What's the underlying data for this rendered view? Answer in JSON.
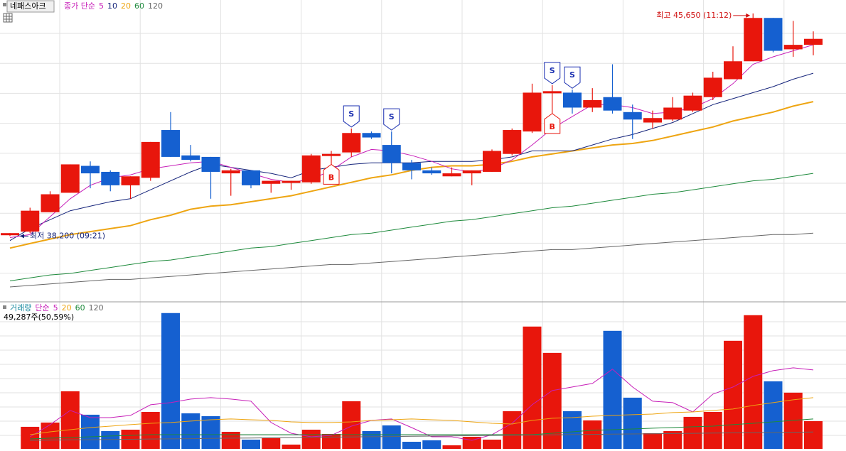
{
  "chart_data": {
    "type": "candlestick",
    "title": "네패스아크",
    "ma_label": "종가 단순",
    "up_color": "#e8160c",
    "down_color": "#1560d0",
    "ylim": [
      36000,
      46100
    ],
    "open": [
      38250,
      38350,
      39000,
      39650,
      40550,
      40350,
      39900,
      40150,
      41750,
      40900,
      40850,
      40300,
      40400,
      39950,
      40000,
      40000,
      40900,
      41000,
      41650,
      41250,
      40650,
      40400,
      40200,
      40300,
      40350,
      40950,
      41700,
      43000,
      43000,
      42500,
      42850,
      42350,
      42000,
      42100,
      42400,
      42850,
      43450,
      44050,
      45500,
      44450,
      44600
    ],
    "high": [
      38300,
      39150,
      39700,
      40600,
      40700,
      40400,
      40200,
      41350,
      42350,
      41250,
      40850,
      40450,
      40400,
      40050,
      40050,
      40950,
      41050,
      41800,
      41700,
      41700,
      40750,
      40500,
      40500,
      40400,
      41100,
      41800,
      43300,
      43250,
      43100,
      43150,
      43950,
      42600,
      42400,
      42850,
      43000,
      43700,
      44550,
      45650,
      45500,
      45400,
      45050
    ],
    "low": [
      38200,
      38300,
      39000,
      39650,
      39800,
      39700,
      39450,
      40050,
      40850,
      40700,
      39450,
      39550,
      39800,
      39650,
      39750,
      39950,
      40600,
      40850,
      41450,
      40300,
      40100,
      40250,
      40200,
      39900,
      40350,
      40900,
      41650,
      42300,
      42300,
      42350,
      42300,
      41450,
      41800,
      42050,
      42350,
      42750,
      43450,
      44050,
      44350,
      44200,
      44250
    ],
    "close": [
      38300,
      39050,
      39600,
      40600,
      40300,
      39900,
      40200,
      41350,
      40850,
      40750,
      40350,
      40400,
      39900,
      40050,
      40050,
      40900,
      40950,
      41650,
      41500,
      40650,
      40400,
      40300,
      40300,
      40400,
      41050,
      41750,
      43000,
      43050,
      42500,
      42750,
      42400,
      42100,
      42150,
      42500,
      42900,
      43500,
      44050,
      45500,
      44400,
      44600,
      44800
    ],
    "ma": [
      {
        "name": "5",
        "color": "#c71fb8",
        "values": [
          38150,
          38250,
          38850,
          39450,
          39900,
          40150,
          40250,
          40450,
          40550,
          40650,
          40700,
          40500,
          40300,
          40100,
          40000,
          40100,
          40400,
          40850,
          41100,
          41050,
          40900,
          40700,
          40450,
          40350,
          40450,
          40750,
          41250,
          41800,
          42200,
          42600,
          42600,
          42500,
          42300,
          42350,
          42500,
          42800,
          43300,
          43950,
          44200,
          44400,
          44600
        ]
      },
      {
        "name": "10",
        "color": "#14237a",
        "values": [
          38050,
          38450,
          38750,
          39050,
          39200,
          39350,
          39450,
          39750,
          40050,
          40350,
          40600,
          40500,
          40400,
          40300,
          40150,
          40400,
          40500,
          40600,
          40650,
          40650,
          40650,
          40700,
          40700,
          40700,
          40750,
          40850,
          41050,
          41050,
          41050,
          41250,
          41450,
          41600,
          41800,
          42000,
          42300,
          42600,
          42800,
          43000,
          43200,
          43450,
          43650
        ]
      },
      {
        "name": "20",
        "color": "#eea512",
        "values": [
          37800,
          37950,
          38100,
          38250,
          38350,
          38450,
          38550,
          38750,
          38900,
          39100,
          39200,
          39250,
          39350,
          39450,
          39550,
          39700,
          39850,
          40000,
          40150,
          40250,
          40400,
          40500,
          40550,
          40550,
          40600,
          40700,
          40850,
          40950,
          41050,
          41150,
          41250,
          41300,
          41400,
          41550,
          41700,
          41850,
          42050,
          42200,
          42350,
          42550,
          42700
        ]
      },
      {
        "name": "60",
        "color": "#1e8a3c",
        "values": [
          36700,
          36800,
          36900,
          36950,
          37050,
          37150,
          37250,
          37350,
          37400,
          37500,
          37600,
          37700,
          37800,
          37850,
          37950,
          38050,
          38150,
          38250,
          38300,
          38400,
          38500,
          38600,
          38700,
          38750,
          38850,
          38950,
          39050,
          39150,
          39200,
          39300,
          39400,
          39500,
          39600,
          39650,
          39750,
          39850,
          39950,
          40050,
          40100,
          40200,
          40300
        ]
      },
      {
        "name": "120",
        "color": "#666666",
        "values": [
          36500,
          36550,
          36600,
          36650,
          36700,
          36750,
          36750,
          36800,
          36850,
          36900,
          36950,
          37000,
          37050,
          37100,
          37150,
          37200,
          37250,
          37250,
          37300,
          37350,
          37400,
          37450,
          37500,
          37550,
          37600,
          37650,
          37700,
          37750,
          37750,
          37800,
          37850,
          37900,
          37950,
          38000,
          38050,
          38100,
          38150,
          38200,
          38250,
          38250,
          38300
        ]
      }
    ],
    "annotations": [
      {
        "text": "최고 45,650 (11:12)",
        "value": 45650,
        "candle": 37,
        "color": "#d01010"
      },
      {
        "text": "최저 38,200 (09:21)",
        "value": 38200,
        "candle": 0,
        "color": "#14237a"
      }
    ],
    "signals": [
      {
        "candle": 16,
        "label": "B"
      },
      {
        "candle": 17,
        "label": "S"
      },
      {
        "candle": 19,
        "label": "S"
      },
      {
        "candle": 27,
        "label": "B"
      },
      {
        "candle": 27,
        "label": "S"
      },
      {
        "candle": 28,
        "label": "S"
      }
    ],
    "volume": {
      "title": "거래량",
      "ma_label": "단순",
      "info": "49,287주(50,59%)",
      "ylim": [
        0,
        255000
      ],
      "values": [
        null,
        39200,
        46800,
        102400,
        60700,
        31600,
        34100,
        65700,
        241400,
        63200,
        58100,
        30300,
        16400,
        19000,
        7600,
        34100,
        26500,
        84700,
        31600,
        41700,
        12600,
        15200,
        6300,
        21500,
        16400,
        67000,
        217400,
        170600,
        67000,
        50600,
        209800,
        91000,
        27800,
        31600,
        56900,
        65700,
        192100,
        237600,
        120100,
        99900,
        49287
      ],
      "ma": [
        {
          "name": "5",
          "color": "#c71fb8",
          "values": [
            null,
            21500,
            43000,
            68300,
            55600,
            55600,
            59400,
            78400,
            82200,
            88500,
            91000,
            88500,
            84700,
            46800,
            27800,
            21500,
            24000,
            40400,
            50600,
            53100,
            37900,
            21500,
            21500,
            15200,
            25300,
            45500,
            78400,
            103600,
            110000,
            116300,
            141600,
            110000,
            84700,
            82200,
            65700,
            97300,
            110000,
            128900,
            139000,
            144100,
            140300
          ]
        },
        {
          "name": "20",
          "color": "#eea512",
          "values": [
            null,
            25300,
            30300,
            34100,
            37900,
            40400,
            43000,
            45500,
            46800,
            49300,
            51800,
            53100,
            51800,
            50600,
            48000,
            46800,
            46800,
            48000,
            50600,
            51800,
            53100,
            51800,
            50600,
            48000,
            45500,
            44200,
            50600,
            54400,
            55600,
            58100,
            59400,
            60700,
            61900,
            64500,
            65700,
            68300,
            70800,
            77100,
            82200,
            87200,
            91000
          ]
        },
        {
          "name": "60",
          "color": "#1e8a3c",
          "values": [
            null,
            17700,
            19000,
            20200,
            21500,
            22800,
            24000,
            25300,
            25300,
            25300,
            25300,
            25300,
            25300,
            25300,
            25300,
            25300,
            25300,
            25300,
            25300,
            25300,
            25300,
            25300,
            25300,
            25300,
            25300,
            25300,
            25300,
            27800,
            30300,
            32900,
            34100,
            35400,
            36700,
            37900,
            39200,
            40400,
            43000,
            45500,
            48000,
            50600,
            53100
          ]
        },
        {
          "name": "120",
          "color": "#666666",
          "values": [
            null,
            15200,
            15600,
            16000,
            16300,
            16700,
            17100,
            17500,
            17800,
            18200,
            18600,
            19000,
            19300,
            19700,
            20100,
            20500,
            20900,
            21200,
            21600,
            22000,
            22400,
            22700,
            23100,
            23500,
            23900,
            24200,
            24600,
            25000,
            25400,
            25800,
            26100,
            26500,
            26900,
            27300,
            27600,
            28000,
            28400,
            28800,
            29100,
            29500,
            29900
          ]
        }
      ]
    }
  }
}
